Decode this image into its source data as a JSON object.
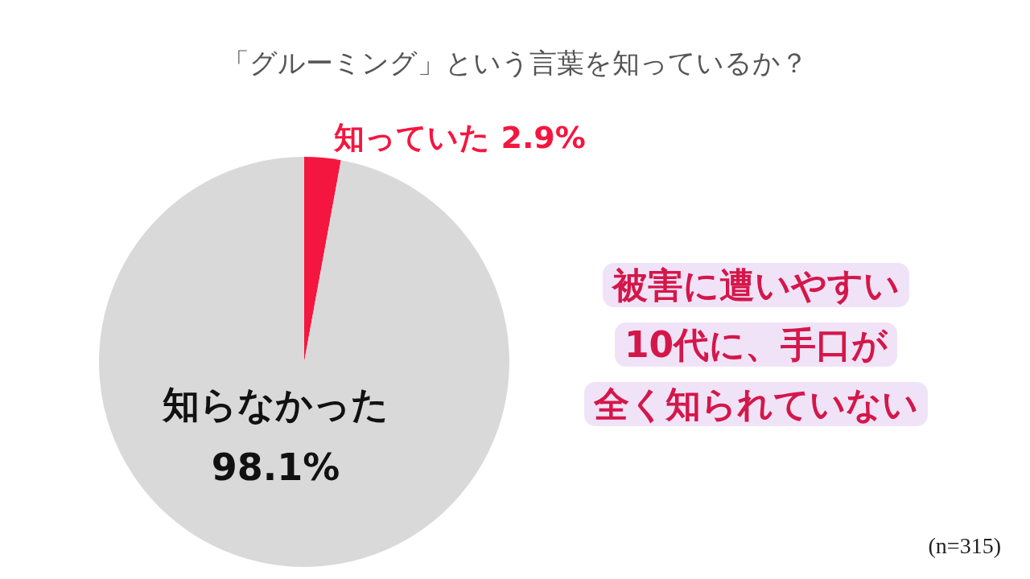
{
  "chart_data": {
    "type": "pie",
    "title": "「グルーミング」という言葉を知っているか？",
    "categories": [
      "知っていた",
      "知らなかった"
    ],
    "values": [
      2.9,
      98.1
    ],
    "colors": [
      "#f5163f",
      "#d9d9d9"
    ],
    "value_labels": [
      "2.9%",
      "98.1%"
    ],
    "annotations": [
      "被害に遭いやすい10代に、手口が全く知られていない",
      "(n=315)"
    ]
  }
}
